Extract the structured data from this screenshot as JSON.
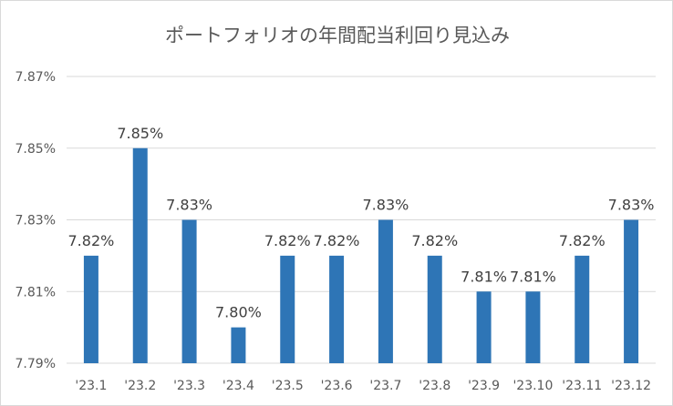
{
  "chart_data": {
    "type": "bar",
    "title": "ポートフォリオの年間配当利回り見込み",
    "categories": [
      "'23.1",
      "'23.2",
      "'23.3",
      "'23.4",
      "'23.5",
      "'23.6",
      "'23.7",
      "'23.8",
      "'23.9",
      "'23.10",
      "'23.11",
      "'23.12"
    ],
    "values": [
      7.82,
      7.85,
      7.83,
      7.8,
      7.82,
      7.82,
      7.83,
      7.82,
      7.81,
      7.81,
      7.82,
      7.83
    ],
    "data_labels": [
      "7.82%",
      "7.85%",
      "7.83%",
      "7.80%",
      "7.82%",
      "7.82%",
      "7.83%",
      "7.82%",
      "7.81%",
      "7.81%",
      "7.82%",
      "7.83%"
    ],
    "yticks": [
      7.79,
      7.81,
      7.83,
      7.85,
      7.87
    ],
    "ytick_labels": [
      "7.79%",
      "7.81%",
      "7.83%",
      "7.85%",
      "7.87%"
    ],
    "ylim": [
      7.79,
      7.87
    ],
    "bar_color": "#2e75b6",
    "grid": true,
    "legend": "none"
  }
}
